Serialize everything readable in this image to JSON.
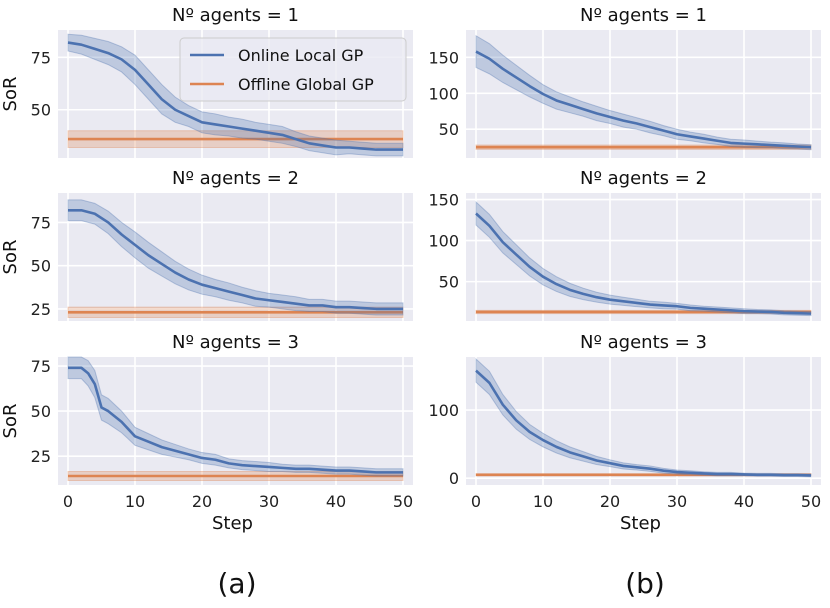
{
  "colors": {
    "background": "#eaeaf2",
    "grid": "#ffffff",
    "online": "#4c72b0",
    "offline": "#dd8452"
  },
  "legend": {
    "online_label": "Online Local GP",
    "offline_label": "Offline Global GP",
    "location": "upper-right of first panel"
  },
  "captions": {
    "left": "(a)",
    "right": "(b)"
  },
  "chart_data": [
    {
      "type": "line",
      "title": "Nº agents = 1",
      "ylabel": "SoR",
      "xlabel": "",
      "xlim": [
        0,
        50
      ],
      "ylim": [
        27,
        88
      ],
      "xticks": [
        0,
        10,
        20,
        30,
        40,
        50
      ],
      "yticks": [
        50,
        75
      ],
      "series": [
        {
          "name": "Online Local GP",
          "x": [
            0,
            2,
            4,
            6,
            8,
            10,
            12,
            14,
            16,
            18,
            20,
            22,
            24,
            26,
            28,
            30,
            32,
            34,
            36,
            38,
            40,
            42,
            44,
            46,
            48,
            50
          ],
          "y": [
            82,
            81,
            79,
            77,
            74,
            69,
            62,
            55,
            50,
            47,
            44,
            43,
            42,
            41,
            40,
            39,
            38,
            36,
            34,
            33,
            32,
            32,
            31.5,
            31,
            31,
            31
          ],
          "band": [
            4,
            4.5,
            5,
            5.5,
            6,
            7,
            7,
            7,
            6,
            5,
            5,
            5,
            4.5,
            4.5,
            4,
            4,
            4,
            3.5,
            3.5,
            3.5,
            3.5,
            3,
            3,
            3,
            3,
            3
          ]
        },
        {
          "name": "Offline Global GP",
          "x": [
            0,
            50
          ],
          "y": [
            36,
            36
          ],
          "band": [
            4,
            4
          ]
        }
      ]
    },
    {
      "type": "line",
      "title": "Nº agents = 2",
      "ylabel": "SoR",
      "xlabel": "",
      "xlim": [
        0,
        50
      ],
      "ylim": [
        18,
        92
      ],
      "xticks": [
        0,
        10,
        20,
        30,
        40,
        50
      ],
      "yticks": [
        25,
        50,
        75
      ],
      "series": [
        {
          "name": "Online Local GP",
          "x": [
            0,
            2,
            4,
            6,
            8,
            10,
            12,
            14,
            16,
            18,
            20,
            22,
            24,
            26,
            28,
            30,
            32,
            34,
            36,
            38,
            40,
            42,
            44,
            46,
            48,
            50
          ],
          "y": [
            82,
            82,
            80,
            75,
            68,
            62,
            56,
            51,
            46,
            42,
            39,
            37,
            35,
            33,
            31,
            30,
            29,
            28,
            27,
            27,
            26,
            26,
            25.5,
            25,
            25,
            25
          ],
          "band": [
            6,
            6,
            6,
            6.5,
            7,
            7.5,
            7.5,
            7,
            6.5,
            6,
            5.5,
            5,
            5,
            4.5,
            4.5,
            4,
            4,
            4,
            3.5,
            3.5,
            3.5,
            3.5,
            3.5,
            3.5,
            3.5,
            3.5
          ]
        },
        {
          "name": "Offline Global GP",
          "x": [
            0,
            50
          ],
          "y": [
            23,
            23
          ],
          "band": [
            3,
            3
          ]
        }
      ]
    },
    {
      "type": "line",
      "title": "Nº agents = 3",
      "ylabel": "SoR",
      "xlabel": "Step",
      "xlim": [
        0,
        50
      ],
      "ylim": [
        9,
        80
      ],
      "xticks": [
        0,
        10,
        20,
        30,
        40,
        50
      ],
      "yticks": [
        25,
        50,
        75
      ],
      "series": [
        {
          "name": "Online Local GP",
          "x": [
            0,
            2,
            3,
            4,
            5,
            6,
            8,
            10,
            12,
            14,
            16,
            18,
            20,
            22,
            24,
            26,
            28,
            30,
            32,
            34,
            36,
            38,
            40,
            42,
            44,
            46,
            48,
            50
          ],
          "y": [
            74,
            74,
            71,
            65,
            52,
            50,
            44,
            36,
            33,
            30,
            28,
            26,
            24,
            23,
            21,
            20,
            19.5,
            19,
            18.5,
            18,
            18,
            17.5,
            17,
            17,
            16.5,
            16,
            16,
            16
          ],
          "band": [
            6,
            6,
            7,
            7.5,
            7,
            7,
            6,
            5,
            4.5,
            4,
            3.5,
            3,
            3,
            3,
            2.5,
            2.5,
            2.5,
            2.5,
            2,
            2,
            2,
            2,
            2,
            2,
            2,
            2,
            2,
            2
          ]
        },
        {
          "name": "Offline Global GP",
          "x": [
            0,
            50
          ],
          "y": [
            14,
            14
          ],
          "band": [
            2.5,
            2.5
          ]
        }
      ]
    },
    {
      "type": "line",
      "title": "Nº agents = 1",
      "ylabel": "",
      "xlabel": "",
      "xlim": [
        0,
        50
      ],
      "ylim": [
        10,
        188
      ],
      "xticks": [
        0,
        10,
        20,
        30,
        40,
        50
      ],
      "yticks": [
        50,
        100,
        150
      ],
      "series": [
        {
          "name": "Online Local GP",
          "x": [
            0,
            2,
            4,
            6,
            8,
            10,
            12,
            14,
            16,
            18,
            20,
            22,
            24,
            26,
            28,
            30,
            32,
            34,
            36,
            38,
            40,
            42,
            44,
            46,
            48,
            50
          ],
          "y": [
            158,
            148,
            134,
            122,
            110,
            99,
            90,
            84,
            78,
            72,
            67,
            62,
            58,
            53,
            48,
            43,
            40,
            37,
            34,
            31,
            30,
            29,
            28,
            27,
            26,
            25
          ],
          "band": [
            22,
            21,
            19,
            17,
            15,
            13,
            12,
            11,
            10,
            10,
            9,
            9,
            8,
            8,
            7,
            7,
            6,
            6,
            5,
            5,
            5,
            4.5,
            4,
            4,
            3.5,
            3.5
          ]
        },
        {
          "name": "Offline Global GP",
          "x": [
            0,
            50
          ],
          "y": [
            25,
            25
          ],
          "band": [
            3,
            3
          ]
        }
      ]
    },
    {
      "type": "line",
      "title": "Nº agents = 2",
      "ylabel": "",
      "xlabel": "",
      "xlim": [
        0,
        50
      ],
      "ylim": [
        2,
        158
      ],
      "xticks": [
        0,
        10,
        20,
        30,
        40,
        50
      ],
      "yticks": [
        50,
        100,
        150
      ],
      "series": [
        {
          "name": "Online Local GP",
          "x": [
            0,
            2,
            4,
            6,
            8,
            10,
            12,
            14,
            16,
            18,
            20,
            22,
            24,
            26,
            28,
            30,
            32,
            34,
            36,
            38,
            40,
            42,
            44,
            46,
            48,
            50
          ],
          "y": [
            133,
            118,
            98,
            83,
            68,
            56,
            47,
            40,
            35,
            31,
            28,
            26,
            24,
            22,
            21,
            20,
            18,
            17,
            16,
            15,
            14,
            13.5,
            13,
            12,
            11.5,
            11
          ],
          "band": [
            14,
            14,
            13,
            12,
            11,
            10,
            9,
            8,
            7,
            6,
            5.5,
            5,
            4.5,
            4,
            4,
            3.5,
            3.5,
            3,
            3,
            3,
            3,
            2.5,
            2.5,
            2.5,
            2.5,
            2.5
          ]
        },
        {
          "name": "Offline Global GP",
          "x": [
            0,
            50
          ],
          "y": [
            13,
            13
          ],
          "band": [
            2,
            2
          ]
        }
      ]
    },
    {
      "type": "line",
      "title": "Nº agents = 3",
      "ylabel": "",
      "xlabel": "Step",
      "xlim": [
        0,
        50
      ],
      "ylim": [
        -10,
        178
      ],
      "xticks": [
        0,
        10,
        20,
        30,
        40,
        50
      ],
      "yticks": [
        0,
        100
      ],
      "series": [
        {
          "name": "Online Local GP",
          "x": [
            0,
            2,
            4,
            6,
            8,
            10,
            12,
            14,
            16,
            18,
            20,
            22,
            24,
            26,
            28,
            30,
            32,
            34,
            36,
            38,
            40,
            42,
            44,
            46,
            48,
            50
          ],
          "y": [
            158,
            140,
            108,
            85,
            68,
            56,
            46,
            38,
            32,
            26,
            22,
            18,
            16,
            14,
            11,
            9,
            8,
            7,
            6,
            6,
            5.5,
            5,
            5,
            4.5,
            4.5,
            4
          ],
          "band": [
            17,
            17,
            15,
            13,
            11,
            10,
            9,
            8,
            7,
            6,
            5,
            4.5,
            4,
            4,
            3.5,
            3,
            3,
            2.5,
            2.5,
            2.5,
            2,
            2,
            2,
            2,
            2,
            2
          ]
        },
        {
          "name": "Offline Global GP",
          "x": [
            0,
            50
          ],
          "y": [
            5,
            5
          ],
          "band": [
            1.5,
            1.5
          ]
        }
      ]
    }
  ]
}
